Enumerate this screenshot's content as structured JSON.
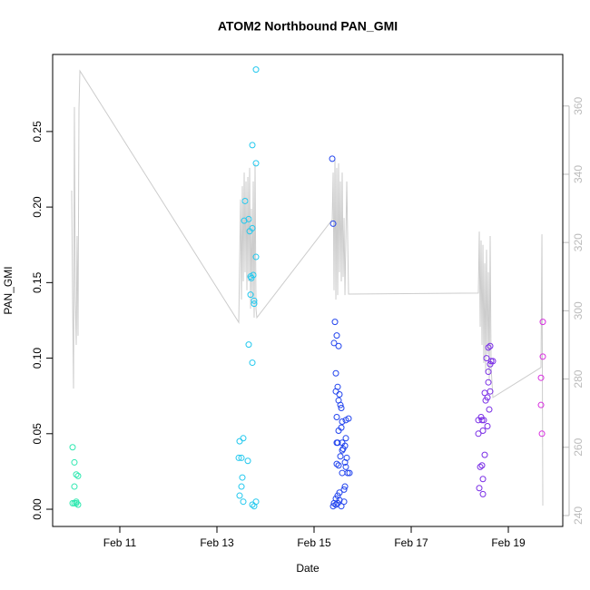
{
  "chart_data": {
    "type": "scatter",
    "title": "ATOM2 Northbound PAN_GMI",
    "xlabel": "Date",
    "ylabel": "PAN_GMI",
    "xlim": [
      9.617,
      20.121
    ],
    "xticks": [
      {
        "value": 11,
        "label": "Feb 11"
      },
      {
        "value": 13,
        "label": "Feb 13"
      },
      {
        "value": 15,
        "label": "Feb 15"
      },
      {
        "value": 17,
        "label": "Feb 17"
      },
      {
        "value": 19,
        "label": "Feb 19"
      }
    ],
    "ylim": [
      -0.0114,
      0.301
    ],
    "yticks": [
      {
        "value": 0,
        "label": "0.00"
      },
      {
        "value": 0.05,
        "label": "0.05"
      },
      {
        "value": 0.1,
        "label": "0.10"
      },
      {
        "value": 0.15,
        "label": "0.15"
      },
      {
        "value": 0.2,
        "label": "0.20"
      },
      {
        "value": 0.25,
        "label": "0.25"
      }
    ],
    "y2lim": [
      236.8,
      375.1
    ],
    "y2ticks": [
      240,
      260,
      280,
      300,
      320,
      340,
      360
    ],
    "y2color": "#bbbbbb",
    "series": [
      {
        "type": "line",
        "axis": "y2",
        "color": "#cccccc",
        "x": [
          10.009,
          10.028,
          10.047,
          10.065,
          10.084,
          10.103,
          10.121,
          10.14,
          10.159,
          10.178,
          13.449,
          13.486,
          13.505,
          13.523,
          13.542,
          13.561,
          13.579,
          13.598,
          13.617,
          13.636,
          13.654,
          13.673,
          13.692,
          13.71,
          13.729,
          13.748,
          13.766,
          13.785,
          13.804,
          13.822,
          15.374,
          15.393,
          15.411,
          15.43,
          15.449,
          15.467,
          15.486,
          15.505,
          15.523,
          15.542,
          15.561,
          15.579,
          15.598,
          15.617,
          15.636,
          15.673,
          15.71,
          18.383,
          18.402,
          18.421,
          18.439,
          18.458,
          18.477,
          18.495,
          18.514,
          18.533,
          18.551,
          18.57,
          18.589,
          18.607,
          18.626,
          18.645,
          18.682,
          19.673,
          19.692,
          19.71
        ],
        "values": [
          335.2,
          303.3,
          277.2,
          359.7,
          303.3,
          290.0,
          321.9,
          292.7,
          359.1,
          370.3,
          296.6,
          332.6,
          303.3,
          336.5,
          308.6,
          340.5,
          311.3,
          337.9,
          306.0,
          339.2,
          308.6,
          341.9,
          300.6,
          329.9,
          303.3,
          337.9,
          298.0,
          343.2,
          300.6,
          298.0,
          326.7,
          340.5,
          306.0,
          344.5,
          303.3,
          341.9,
          304.6,
          343.2,
          311.3,
          337.9,
          308.6,
          340.5,
          309.9,
          327.2,
          304.6,
          337.9,
          304.9,
          305.2,
          323.2,
          295.3,
          320.6,
          290.0,
          319.3,
          284.7,
          313.9,
          282.0,
          317.9,
          287.3,
          311.3,
          279.4,
          321.9,
          283.4,
          274.6,
          283.4,
          322.4,
          242.9
        ]
      },
      {
        "type": "scatter",
        "color": "#2ee8b0",
        "x": [
          10.028,
          10.065,
          10.103,
          10.14,
          10.065,
          10.103,
          10.065,
          10.103,
          10.14,
          10.028
        ],
        "values": [
          0.041,
          0.031,
          0.023,
          0.022,
          0.015,
          0.005,
          0.004,
          0.004,
          0.003,
          0.004
        ]
      },
      {
        "type": "scatter",
        "color": "#22c8ee",
        "x": [
          13.804,
          13.729,
          13.804,
          13.579,
          13.654,
          13.561,
          13.729,
          13.673,
          13.804,
          13.692,
          13.71,
          13.748,
          13.692,
          13.766,
          13.766,
          13.654,
          13.729,
          13.542,
          13.467,
          13.505,
          13.449,
          13.636,
          13.523,
          13.505,
          13.467,
          13.542,
          13.729,
          13.804,
          13.766
        ],
        "values": [
          0.291,
          0.241,
          0.229,
          0.204,
          0.192,
          0.191,
          0.186,
          0.184,
          0.167,
          0.154,
          0.153,
          0.155,
          0.142,
          0.138,
          0.136,
          0.109,
          0.097,
          0.047,
          0.045,
          0.034,
          0.034,
          0.032,
          0.021,
          0.015,
          0.009,
          0.005,
          0.003,
          0.005,
          0.002
        ]
      },
      {
        "type": "scatter",
        "color": "#2244ee",
        "x": [
          15.374,
          15.393,
          15.43,
          15.467,
          15.411,
          15.505,
          15.449,
          15.486,
          15.449,
          15.523,
          15.505,
          15.542,
          15.561,
          15.467,
          15.579,
          15.654,
          15.71,
          15.561,
          15.505,
          15.467,
          15.486,
          15.654,
          15.579,
          15.636,
          15.598,
          15.579,
          15.542,
          15.673,
          15.636,
          15.467,
          15.505,
          15.654,
          15.692,
          15.579,
          15.729,
          15.636,
          15.617,
          15.523,
          15.486,
          15.449,
          15.523,
          15.411,
          15.486,
          15.449,
          15.561,
          15.617,
          15.393
        ],
        "values": [
          0.232,
          0.189,
          0.124,
          0.115,
          0.11,
          0.108,
          0.09,
          0.081,
          0.078,
          0.076,
          0.072,
          0.069,
          0.067,
          0.061,
          0.058,
          0.059,
          0.06,
          0.054,
          0.052,
          0.044,
          0.044,
          0.047,
          0.044,
          0.042,
          0.04,
          0.039,
          0.035,
          0.034,
          0.031,
          0.03,
          0.029,
          0.028,
          0.024,
          0.024,
          0.024,
          0.015,
          0.013,
          0.011,
          0.009,
          0.007,
          0.006,
          0.004,
          0.004,
          0.003,
          0.002,
          0.005,
          0.002
        ]
      },
      {
        "type": "scatter",
        "color": "#7a2ee6",
        "x": [
          18.626,
          18.589,
          18.682,
          18.551,
          18.626,
          18.645,
          18.589,
          18.589,
          18.514,
          18.626,
          18.57,
          18.533,
          18.607,
          18.439,
          18.383,
          18.495,
          18.458,
          18.57,
          18.477,
          18.383,
          18.514,
          18.458,
          18.421,
          18.477,
          18.402,
          18.477
        ],
        "values": [
          0.108,
          0.107,
          0.098,
          0.1,
          0.096,
          0.098,
          0.091,
          0.084,
          0.077,
          0.078,
          0.074,
          0.072,
          0.066,
          0.061,
          0.059,
          0.059,
          0.059,
          0.055,
          0.052,
          0.05,
          0.036,
          0.029,
          0.028,
          0.02,
          0.014,
          0.01
        ]
      },
      {
        "type": "scatter",
        "color": "#d82ee0",
        "x": [
          19.71,
          19.71,
          19.673,
          19.673,
          19.692
        ],
        "values": [
          0.124,
          0.101,
          0.087,
          0.069,
          0.05
        ]
      }
    ]
  }
}
